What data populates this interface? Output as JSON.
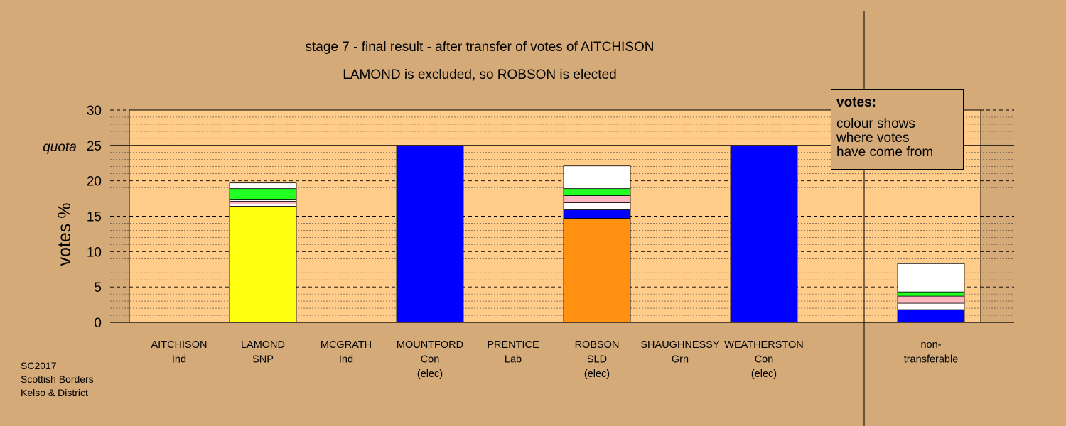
{
  "chart_data": {
    "type": "bar",
    "title": "stage 7 - final result - after transfer of votes of AITCHISON",
    "subtitle": "LAMOND is excluded, so ROBSON is elected",
    "ylabel": "votes %",
    "ylim": [
      0,
      30
    ],
    "yticks": [
      "0",
      "5",
      "10",
      "15",
      "20",
      "25",
      "30"
    ],
    "quota_label": "quota",
    "quota_value": 25,
    "candidates": [
      {
        "name": "AITCHISON",
        "party": "Ind",
        "note": "",
        "segments": []
      },
      {
        "name": "LAMOND",
        "party": "SNP",
        "note": "",
        "segments": [
          {
            "value": 16.4,
            "color": "#ffff10"
          },
          {
            "value": 0.3,
            "color": "#ffffff"
          },
          {
            "value": 0.4,
            "color": "#ffb6c1"
          },
          {
            "value": 0.3,
            "color": "#ffffff"
          },
          {
            "value": 1.5,
            "color": "#22ff22"
          },
          {
            "value": 0.8,
            "color": "#ffffff"
          }
        ]
      },
      {
        "name": "MCGRATH",
        "party": "Ind",
        "note": "",
        "segments": []
      },
      {
        "name": "MOUNTFORD",
        "party": "Con",
        "note": "(elec)",
        "segments": [
          {
            "value": 25.0,
            "color": "#0000ff"
          }
        ]
      },
      {
        "name": "PRENTICE",
        "party": "Lab",
        "note": "",
        "segments": []
      },
      {
        "name": "ROBSON",
        "party": "SLD",
        "note": "(elec)",
        "segments": [
          {
            "value": 14.7,
            "color": "#ff9010"
          },
          {
            "value": 1.2,
            "color": "#0000ff"
          },
          {
            "value": 1.0,
            "color": "#ffffff"
          },
          {
            "value": 1.0,
            "color": "#ffb6c1"
          },
          {
            "value": 1.0,
            "color": "#22ff22"
          },
          {
            "value": 3.2,
            "color": "#ffffff"
          }
        ]
      },
      {
        "name": "SHAUGHNESSY",
        "party": "Grn",
        "note": "",
        "segments": []
      },
      {
        "name": "WEATHERSTON",
        "party": "Con",
        "note": "(elec)",
        "segments": [
          {
            "value": 25.0,
            "color": "#0000ff"
          }
        ]
      }
    ],
    "nontransferable": {
      "label_line1": "non-",
      "label_line2": "transferable",
      "segments": [
        {
          "value": 1.8,
          "color": "#0000ff"
        },
        {
          "value": 0.9,
          "color": "#ffffff"
        },
        {
          "value": 1.0,
          "color": "#ffb6c1"
        },
        {
          "value": 0.6,
          "color": "#22ff22"
        },
        {
          "value": 4.0,
          "color": "#ffffff"
        }
      ]
    },
    "colors": {
      "page_bg": "#d4aa78",
      "plot_bg": "#ffcc8a",
      "axis": "#000000"
    }
  },
  "legend": {
    "title": "votes:",
    "lines": [
      "colour shows",
      "where votes",
      "have come from"
    ]
  },
  "footer": {
    "lines": [
      "SC2017",
      "Scottish Borders",
      "Kelso & District"
    ]
  }
}
